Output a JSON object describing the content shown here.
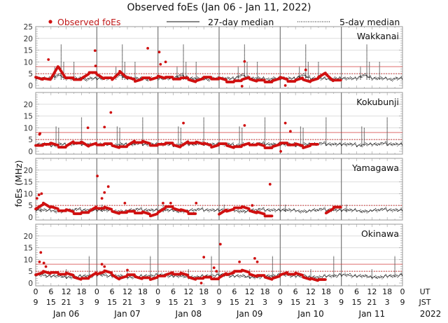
{
  "chart_data": {
    "type": "scatter",
    "title": "Observed foEs (Jan 06 - Jan 11, 2022)",
    "legend": {
      "observed": "Observed foEs",
      "median27": "27-day median",
      "median5": "5-day median",
      "placement": "top"
    },
    "ylabel": "foEs (MHz)",
    "ylim": [
      0,
      25
    ],
    "y_ticks": [
      0,
      5,
      10,
      15,
      20,
      25
    ],
    "x_range_hours_ut": [
      0,
      144
    ],
    "x_ticks_ut": [
      "0",
      "6",
      "12",
      "18"
    ],
    "x_ticks_jst": [
      "9",
      "15",
      "21",
      "3"
    ],
    "x_axis_labels": {
      "ut": "UT",
      "jst": "JST",
      "year": "2022"
    },
    "days": [
      "Jan 06",
      "Jan 07",
      "Jan 08",
      "Jan 09",
      "Jan 10",
      "Jan 11"
    ],
    "colors": {
      "observed": "#d01010",
      "median": "#111111",
      "threshold": "#d03030",
      "grid": "#dddddd",
      "dayline": "#777777"
    },
    "stations": [
      {
        "name": "Wakkanai",
        "thresholds": {
          "solid": 8,
          "dotted": 5
        },
        "observed_3h": [
          4,
          3,
          2.5,
          8,
          3,
          3,
          3,
          5,
          5,
          3,
          3,
          6,
          3,
          2,
          3,
          3,
          4,
          3,
          3,
          3,
          3,
          2,
          3,
          3,
          3,
          2,
          2,
          2,
          3,
          2,
          2,
          2,
          3,
          2,
          2,
          3,
          2,
          3,
          5,
          2,
          null,
          null,
          null,
          null,
          null,
          null,
          null,
          null
        ],
        "observed_outliers": [
          [
            5,
            11
          ],
          [
            23.3,
            14.8
          ],
          [
            23.5,
            8.3
          ],
          [
            44,
            15.8
          ],
          [
            48.5,
            14.2
          ],
          [
            49,
            9
          ],
          [
            51,
            10
          ],
          [
            82,
            10.2
          ],
          [
            106,
            6.6
          ],
          [
            81,
            -0.3
          ],
          [
            98,
            0
          ]
        ],
        "median27_hourly": [
          3,
          3,
          3,
          3,
          3,
          3,
          3,
          3.5,
          4,
          4.5,
          4,
          3.5,
          3,
          3,
          3,
          3,
          3,
          3,
          3,
          2.5,
          2.5,
          3,
          3,
          3
        ],
        "median5_spikes": [
          [
            7.5,
            8
          ],
          [
            10,
            17.5
          ],
          [
            11,
            10
          ],
          [
            15,
            10
          ]
        ]
      },
      {
        "name": "Kokubunji",
        "thresholds": {
          "solid": 8,
          "dotted": 5
        },
        "observed_3h": [
          3,
          3,
          3,
          2,
          2,
          4,
          4,
          2,
          3,
          3,
          3,
          2,
          2,
          4,
          4,
          3,
          3,
          3,
          3,
          2,
          4,
          4,
          3,
          2,
          3,
          3,
          2,
          2,
          3,
          3,
          2,
          2,
          3,
          3,
          3,
          2,
          3,
          null,
          null,
          null,
          null,
          null,
          null,
          null,
          null,
          null,
          null,
          null
        ],
        "observed_outliers": [
          [
            1.5,
            7.2
          ],
          [
            1.7,
            7.6
          ],
          [
            20.5,
            10
          ],
          [
            27,
            10.3
          ],
          [
            29.5,
            16.5
          ],
          [
            58,
            12
          ],
          [
            82,
            11
          ],
          [
            98,
            12
          ],
          [
            100,
            8.5
          ],
          [
            96.2,
            0
          ]
        ],
        "median27_hourly": [
          3,
          3,
          3,
          3,
          3,
          3,
          2.5,
          2.5,
          2.5,
          3,
          3,
          3,
          3,
          3,
          3,
          3,
          3.5,
          3.5,
          3,
          3,
          3,
          3,
          3,
          3
        ],
        "median5_spikes": [
          [
            8,
            10.5
          ],
          [
            18,
            14.5
          ],
          [
            9,
            10
          ]
        ]
      },
      {
        "name": "Yamagawa",
        "thresholds": {
          "dotted": 5
        },
        "observed_3h": [
          4,
          6,
          4,
          3,
          3,
          2,
          2,
          2,
          4,
          4,
          3,
          2,
          2,
          2,
          2,
          1,
          2,
          4,
          4,
          3,
          2,
          null,
          null,
          null,
          1,
          3,
          4,
          4,
          3,
          2,
          1,
          null,
          null,
          null,
          null,
          null,
          null,
          null,
          2,
          4,
          null,
          null,
          null,
          null,
          null,
          null,
          null,
          null
        ],
        "observed_outliers": [
          [
            0.5,
            8
          ],
          [
            1.3,
            9.5
          ],
          [
            2.3,
            10
          ],
          [
            24.2,
            17.5
          ],
          [
            26,
            8
          ],
          [
            27,
            10.5
          ],
          [
            28.5,
            13
          ],
          [
            35,
            6
          ],
          [
            50,
            6
          ],
          [
            53,
            6
          ],
          [
            63,
            6
          ],
          [
            92,
            14
          ],
          [
            85,
            5
          ]
        ],
        "median27_hourly": [
          3,
          3,
          3,
          3,
          3,
          3,
          3,
          2.5,
          2.5,
          2.5,
          2.5,
          2.5,
          3,
          3,
          3,
          3,
          3.5,
          3.5,
          3,
          3,
          3,
          3,
          3,
          3
        ],
        "median5_spikes": [
          [
            2,
            5.5
          ]
        ]
      },
      {
        "name": "Okinawa",
        "thresholds": {
          "solid": 8,
          "dotted": 5
        },
        "observed_3h": [
          4,
          5,
          4,
          4,
          4,
          3,
          2,
          2,
          4,
          5,
          4,
          2,
          3,
          3,
          2,
          2,
          3,
          3,
          4,
          4,
          3,
          2,
          2,
          2,
          2,
          4,
          5,
          5,
          4,
          3,
          3,
          2,
          3,
          4,
          4,
          3,
          2,
          1,
          null,
          null,
          null,
          null,
          null,
          null,
          null,
          null,
          null,
          null
        ],
        "observed_outliers": [
          [
            1.5,
            9
          ],
          [
            2,
            13
          ],
          [
            3.2,
            8.5
          ],
          [
            4,
            7
          ],
          [
            26,
            8
          ],
          [
            27,
            7
          ],
          [
            36,
            5.5
          ],
          [
            66,
            11
          ],
          [
            70,
            6.5
          ],
          [
            71,
            5
          ],
          [
            72.5,
            16.5
          ],
          [
            80,
            9
          ],
          [
            86,
            10.5
          ],
          [
            87,
            9
          ],
          [
            65,
            0
          ]
        ],
        "median27_hourly": [
          3.5,
          3.5,
          3.5,
          3.5,
          3,
          3,
          3,
          3,
          3,
          3,
          3,
          2.5,
          2.5,
          2.5,
          2.5,
          2.5,
          2.5,
          3,
          3,
          3,
          3,
          3,
          3,
          3.5
        ],
        "median5_spikes": [
          [
            12,
            6
          ],
          [
            21,
            11.5
          ]
        ]
      }
    ]
  }
}
